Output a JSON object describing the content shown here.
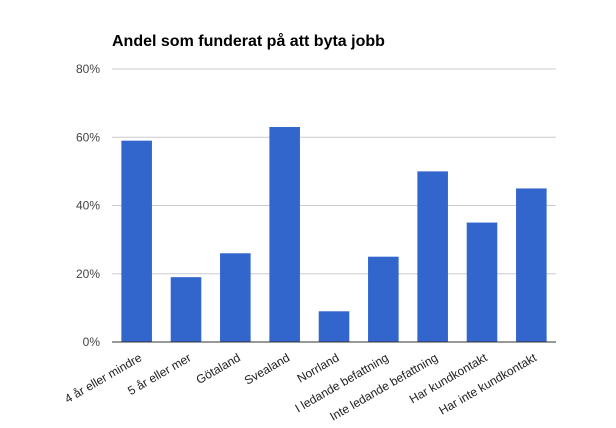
{
  "chart_data": {
    "type": "bar",
    "title": "Andel som funderat på att byta jobb",
    "xlabel": "",
    "ylabel": "",
    "categories": [
      "4 år eller mindre",
      "5 år eller mer",
      "Götaland",
      "Svealand",
      "Norrland",
      "I ledande befattning",
      "Inte ledande befattning",
      "Har kundkontakt",
      "Har inte kundkontakt"
    ],
    "values": [
      0.59,
      0.19,
      0.26,
      0.63,
      0.09,
      0.25,
      0.5,
      0.35,
      0.45
    ],
    "ylim": [
      0,
      0.8
    ],
    "yticks": [
      0,
      0.2,
      0.4,
      0.6,
      0.8
    ],
    "ytick_labels": [
      "0%",
      "20%",
      "40%",
      "60%",
      "80%"
    ],
    "grid": true,
    "legend": "none",
    "bar_color": "#3366cc",
    "gridline_color": "#cccccc",
    "baseline_color": "#333333"
  }
}
